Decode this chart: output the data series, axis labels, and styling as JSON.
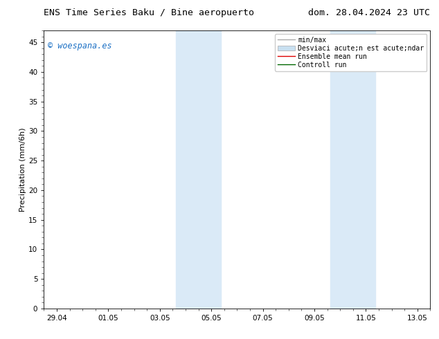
{
  "title_left": "ENS Time Series Baku / Bine aeropuerto",
  "title_right": "dom. 28.04.2024 23 UTC",
  "ylabel": "Precipitation (mm/6h)",
  "ylim": [
    0,
    47
  ],
  "yticks": [
    0,
    5,
    10,
    15,
    20,
    25,
    30,
    35,
    40,
    45
  ],
  "watermark": "© woespana.es",
  "watermark_color": "#1a6fc4",
  "background_color": "#ffffff",
  "plot_bg_color": "#ffffff",
  "shade_bands": [
    {
      "x_start": 4.62,
      "x_end": 6.38
    },
    {
      "x_start": 10.62,
      "x_end": 12.38
    }
  ],
  "shade_color": "#daeaf7",
  "xtick_labels": [
    "29.04",
    "01.05",
    "03.05",
    "05.05",
    "07.05",
    "09.05",
    "11.05",
    "13.05"
  ],
  "xtick_positions": [
    0,
    2,
    4,
    6,
    8,
    10,
    12,
    14
  ],
  "xmin": -0.5,
  "xmax": 14.5,
  "legend_entries_line1": "min/max",
  "legend_entries_line2": "Desviaci acute;n est acute;ndar",
  "legend_entries_line3": "Ensemble mean run",
  "legend_entries_line4": "Controll run",
  "legend_color1": "#aaaaaa",
  "legend_color2": "#c8dff0",
  "legend_color3": "#dd0000",
  "legend_color4": "#006600",
  "title_fontsize": 9.5,
  "axis_fontsize": 8,
  "tick_fontsize": 7.5,
  "legend_fontsize": 7,
  "watermark_fontsize": 8.5
}
